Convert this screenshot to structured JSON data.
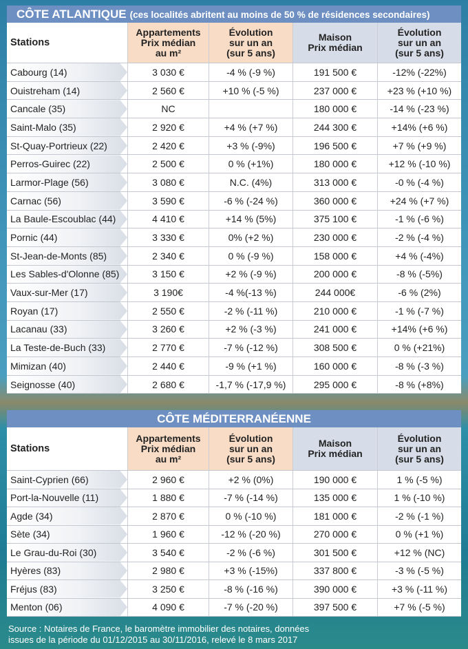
{
  "sections": [
    {
      "title": "CÔTE ATLANTIQUE",
      "subtitle": "(ces localités abritent au moins de 50 % de résidences secondaires)",
      "headers": [
        "Stations",
        "Appartements\nPrix médian\nau m²",
        "Évolution\nsur un an\n(sur 5 ans)",
        "Maison\nPrix médian",
        "Évolution\nsur un an\n(sur 5 ans)"
      ],
      "rows": [
        [
          "Cabourg (14)",
          "3 030 €",
          "-4 % (-9 %)",
          "191 500 €",
          "-12% (-22%)"
        ],
        [
          "Ouistreham (14)",
          "2 560 €",
          "+10 % (-5 %)",
          "237 000 €",
          "+23 % (+10 %)"
        ],
        [
          "Cancale (35)",
          "NC",
          null,
          "180 000 €",
          "-14 % (-23 %)"
        ],
        [
          "Saint-Malo (35)",
          "2 920 €",
          "+4 % (+7 %)",
          "244 300 €",
          "+14% (+6 %)"
        ],
        [
          "St-Quay-Portrieux (22)",
          "2 420 €",
          "+3 % (-9%)",
          "196 500 €",
          "+7 % (+9 %)"
        ],
        [
          "Perros-Guirec (22)",
          "2 500 €",
          "0 % (+1%)",
          "180 000 €",
          "+12 % (-10 %)"
        ],
        [
          "Larmor-Plage (56)",
          "3 080 €",
          "N.C. (4%)",
          "313 000 €",
          "-0 % (-4 %)"
        ],
        [
          "Carnac (56)",
          "3 590 €",
          "-6 % (-24 %)",
          "360 000 €",
          "+24 % (+7 %)"
        ],
        [
          "La Baule-Escoublac (44)",
          "4 410 €",
          "+14 % (5%)",
          "375 100 €",
          "-1 % (-6 %)"
        ],
        [
          "Pornic (44)",
          "3 330 €",
          "0% (+2 %)",
          "230 000 €",
          "-2 % (-4 %)"
        ],
        [
          "St-Jean-de-Monts (85)",
          "2 340 €",
          "0 % (-9 %)",
          "158 000 €",
          "+4 % (-4%)"
        ],
        [
          "Les Sables-d'Olonne (85)",
          "3 150 €",
          "+2 % (-9 %)",
          "200 000 €",
          "-8 % (-5%)"
        ],
        [
          "Vaux-sur-Mer (17)",
          "3 190€",
          "-4 %(-13 %)",
          "244 000€",
          "-6 % (2%)"
        ],
        [
          "Royan (17)",
          "2 550 €",
          "-2 % (-11 %)",
          "210 000 €",
          "-1 % (-7 %)"
        ],
        [
          "Lacanau (33)",
          "3 260 €",
          "+2 % (-3 %)",
          "241 000 €",
          "+14% (+6 %)"
        ],
        [
          "La Teste-de-Buch (33)",
          "2 770 €",
          "-7 % (-12 %)",
          "308 500 €",
          "0 % (+21%)"
        ],
        [
          "Mimizan (40)",
          "2 440 €",
          "-9 % (+1 %)",
          "160 000 €",
          "-8 % (-3 %)"
        ],
        [
          "Seignosse (40)",
          "2 680 €",
          "-1,7 % (-17,9 %)",
          "295 000 €",
          "-8 % (+8%)"
        ]
      ]
    },
    {
      "title": "CÔTE MÉDITERRANÉENNE",
      "headers": [
        "Stations",
        "Appartements\nPrix médian\nau m²",
        "Évolution\nsur un an\n(sur 5 ans)",
        "Maison\nPrix médian",
        "Évolution\nsur un an\n(sur 5 ans)"
      ],
      "rows": [
        [
          "Saint-Cyprien (66)",
          "2 960 €",
          "+2 % (0%)",
          "190 000 €",
          "1 % (-5 %)"
        ],
        [
          "Port-la-Nouvelle (11)",
          "1 880 €",
          "-7 % (-14 %)",
          "135 000 €",
          "1 % (-10 %)"
        ],
        [
          "Agde (34)",
          "2 870 €",
          "0 % (-10 %)",
          "181 000 €",
          "-2 % (-1 %)"
        ],
        [
          "Sète (34)",
          "1 960 €",
          "-12 % (-20 %)",
          "270 000 €",
          "0 % (+1 %)"
        ],
        [
          "Le Grau-du-Roi (30)",
          "3 540 €",
          "-2 % (-6 %)",
          "301 500 €",
          "+12 % (NC)"
        ],
        [
          "Hyères (83)",
          "2 980 €",
          "+3 % (-15%)",
          "337 800 €",
          "-3 % (-5 %)"
        ],
        [
          "Fréjus (83)",
          "3 250 €",
          "-8 % (-16 %)",
          "390 000 €",
          "+3 % (-11 %)"
        ],
        [
          "Menton (06)",
          "4 090 €",
          "-7 % (-20 %)",
          "397 500 €",
          "+7 % (-5 %)"
        ]
      ]
    }
  ],
  "source": [
    "Source : Notaires de France, le baromètre immobilier des notaires, données",
    "issues de la période du 01/12/2015 au 30/11/2016, relevé le 8 mars 2017"
  ]
}
